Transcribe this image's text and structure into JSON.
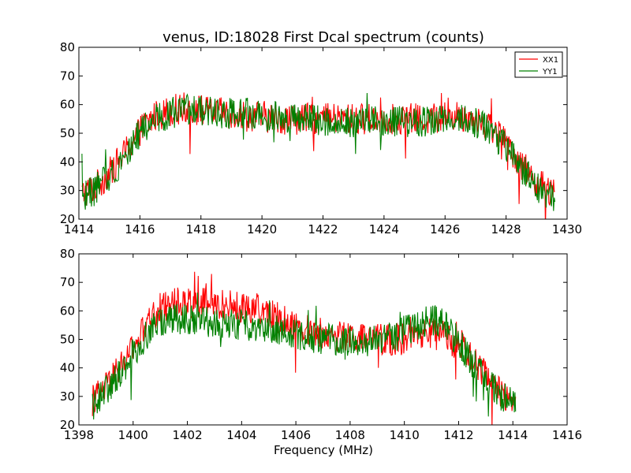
{
  "figure": {
    "title": "venus, ID:18028 First Dcal spectrum (counts)",
    "xlabel": "Frequency (MHz)"
  },
  "chart_data": [
    {
      "type": "line",
      "title": "venus, ID:18028 First Dcal spectrum (counts)",
      "xlabel": "",
      "ylabel": "",
      "xlim": [
        1414,
        1430
      ],
      "ylim": [
        20,
        80
      ],
      "xticks": [
        "1414",
        "1416",
        "1418",
        "1420",
        "1422",
        "1424",
        "1426",
        "1428",
        "1430"
      ],
      "yticks": [
        "20",
        "30",
        "40",
        "50",
        "60",
        "70",
        "80"
      ],
      "grid": false,
      "legend": "top-right",
      "series": [
        {
          "name": "XX1",
          "color": "#ff0000",
          "x": [
            1414.1,
            1414.5,
            1415.0,
            1415.5,
            1416.0,
            1416.5,
            1417.0,
            1417.5,
            1418.0,
            1418.5,
            1419.0,
            1419.5,
            1420.0,
            1420.5,
            1421.0,
            1421.5,
            1422.0,
            1422.5,
            1423.0,
            1423.5,
            1424.0,
            1424.5,
            1425.0,
            1425.5,
            1426.0,
            1426.5,
            1427.0,
            1427.5,
            1428.0,
            1428.5,
            1429.0,
            1429.6
          ],
          "values": [
            29,
            31,
            36,
            43,
            51,
            56,
            58,
            59,
            58,
            57,
            57,
            56,
            56,
            55,
            55,
            55,
            55,
            55,
            55,
            55,
            55,
            55,
            55,
            55,
            56,
            56,
            55,
            52,
            47,
            39,
            33,
            28
          ]
        },
        {
          "name": "YY1",
          "color": "#008000",
          "x": [
            1414.1,
            1414.5,
            1415.0,
            1415.5,
            1416.0,
            1416.5,
            1417.0,
            1417.5,
            1418.0,
            1418.5,
            1419.0,
            1419.5,
            1420.0,
            1420.5,
            1421.0,
            1421.5,
            1422.0,
            1422.5,
            1423.0,
            1423.5,
            1424.0,
            1424.5,
            1425.0,
            1425.5,
            1426.0,
            1426.5,
            1427.0,
            1427.5,
            1428.0,
            1428.5,
            1429.0,
            1429.6
          ],
          "values": [
            28,
            30,
            35,
            42,
            50,
            55,
            57,
            58,
            58,
            57,
            57,
            57,
            56,
            56,
            55,
            55,
            54,
            54,
            54,
            54,
            54,
            54,
            54,
            54,
            55,
            55,
            54,
            51,
            45,
            38,
            31,
            27
          ]
        }
      ]
    },
    {
      "type": "line",
      "title": "",
      "xlabel": "Frequency (MHz)",
      "ylabel": "",
      "xlim": [
        1398,
        1416
      ],
      "ylim": [
        20,
        80
      ],
      "xticks": [
        "1398",
        "1400",
        "1402",
        "1404",
        "1406",
        "1408",
        "1410",
        "1412",
        "1414",
        "1416"
      ],
      "yticks": [
        "20",
        "30",
        "40",
        "50",
        "60",
        "70",
        "80"
      ],
      "grid": false,
      "series": [
        {
          "name": "XX1",
          "color": "#ff0000",
          "x": [
            1398.5,
            1399.0,
            1399.5,
            1400.0,
            1400.5,
            1401.0,
            1401.5,
            1402.0,
            1402.5,
            1403.0,
            1403.5,
            1404.0,
            1404.5,
            1405.0,
            1405.5,
            1406.0,
            1406.5,
            1407.0,
            1407.5,
            1408.0,
            1408.5,
            1409.0,
            1409.5,
            1410.0,
            1410.5,
            1411.0,
            1411.5,
            1412.0,
            1412.5,
            1413.0,
            1413.5,
            1414.1
          ],
          "values": [
            29,
            33,
            40,
            47,
            55,
            61,
            63,
            63,
            63,
            62,
            62,
            61,
            61,
            59,
            57,
            55,
            53,
            52,
            51,
            51,
            50,
            50,
            50,
            50,
            51,
            52,
            51,
            48,
            43,
            37,
            32,
            28
          ]
        },
        {
          "name": "YY1",
          "color": "#008000",
          "x": [
            1398.5,
            1399.0,
            1399.5,
            1400.0,
            1400.5,
            1401.0,
            1401.5,
            1402.0,
            1402.5,
            1403.0,
            1403.5,
            1404.0,
            1404.5,
            1405.0,
            1405.5,
            1406.0,
            1406.5,
            1407.0,
            1407.5,
            1408.0,
            1408.5,
            1409.0,
            1409.5,
            1410.0,
            1410.5,
            1411.0,
            1411.5,
            1412.0,
            1412.5,
            1413.0,
            1413.5,
            1414.1
          ],
          "values": [
            28,
            32,
            38,
            45,
            52,
            56,
            57,
            57,
            56,
            56,
            55,
            55,
            55,
            54,
            53,
            52,
            51,
            50,
            50,
            49,
            49,
            50,
            51,
            53,
            55,
            57,
            55,
            49,
            42,
            36,
            31,
            27
          ]
        }
      ]
    }
  ]
}
